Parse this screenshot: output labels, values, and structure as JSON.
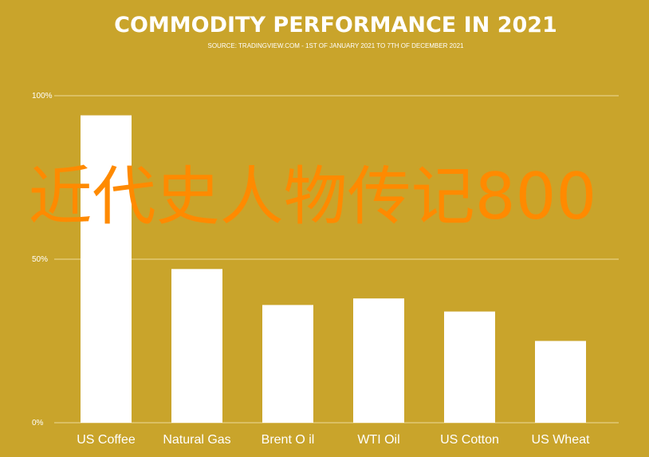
{
  "chart_data": {
    "type": "bar",
    "title": "COMMODITY PERFORMANCE IN 2021",
    "subtitle": "SOURCE: TRADINGVIEW.COM - 1ST OF JANUARY 2021 TO 7TH OF DECEMBER 2021",
    "categories": [
      "US Coffee",
      "Natural Gas",
      "Brent O il",
      "WTI Oil",
      "US Cotton",
      "US Wheat"
    ],
    "values": [
      94,
      47,
      36,
      38,
      34,
      25
    ],
    "yticks": [
      "0%",
      "50%",
      "100%"
    ],
    "ylim": [
      0,
      100
    ],
    "grid": true,
    "colors": {
      "background": "#c9a42b",
      "bar": "#ffffff",
      "grid": "#e6cf84"
    }
  },
  "watermark": "近代史人物传记800"
}
